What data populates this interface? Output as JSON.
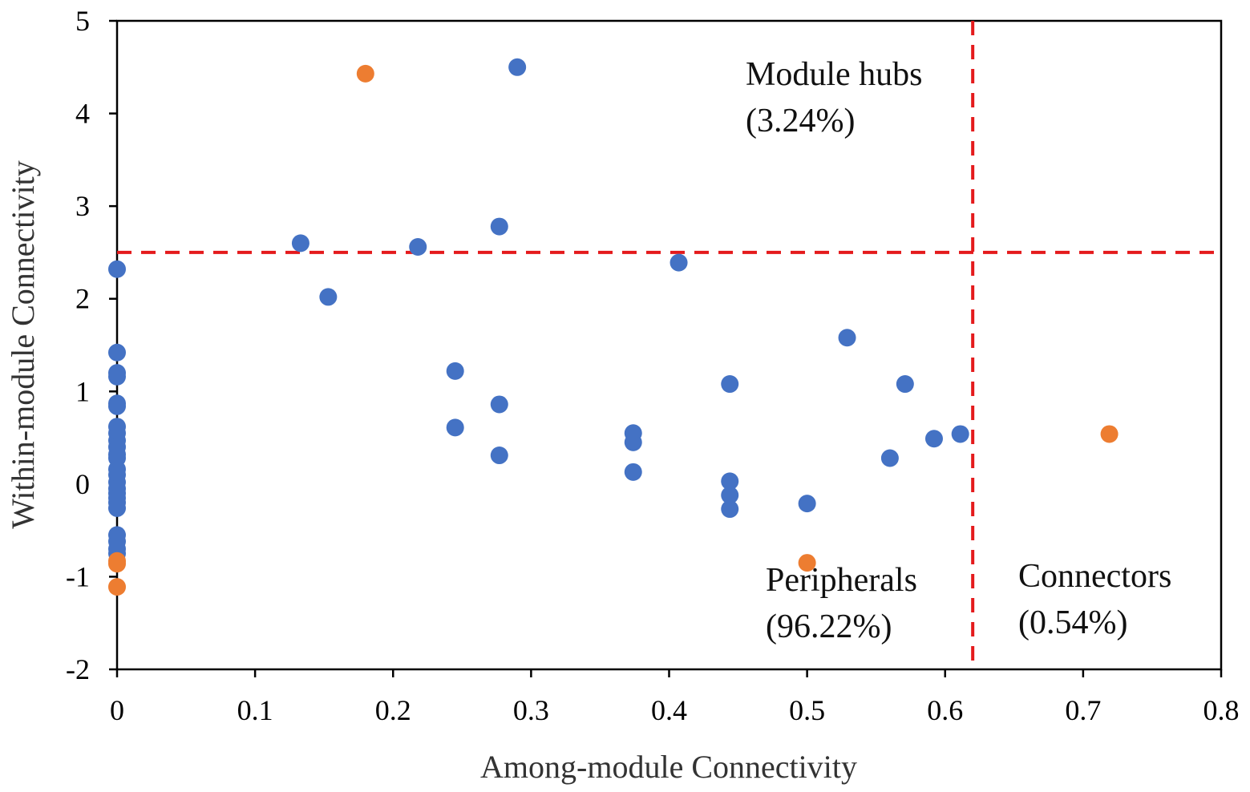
{
  "chart_data": {
    "type": "scatter",
    "xlabel": "Among-module Connectivity",
    "ylabel": "Within-module Connectivity",
    "xlim": [
      0,
      0.8
    ],
    "ylim": [
      -2,
      5
    ],
    "x_ticks": [
      "0",
      "0.1",
      "0.2",
      "0.3",
      "0.4",
      "0.5",
      "0.6",
      "0.7",
      "0.8"
    ],
    "y_ticks": [
      "5",
      "4",
      "3",
      "2",
      "1",
      "0",
      "-1",
      "-2"
    ],
    "thresholds": {
      "x": 0.62,
      "y": 2.5,
      "color": "#e41a1c"
    },
    "annotations": [
      {
        "id": "module-hubs",
        "lines": [
          "Module hubs",
          "(3.24%)"
        ]
      },
      {
        "id": "peripherals",
        "lines": [
          "Peripherals",
          "(96.22%)"
        ]
      },
      {
        "id": "connectors",
        "lines": [
          "Connectors",
          "(0.54%)"
        ]
      }
    ],
    "series": [
      {
        "name": "blue",
        "color": "#4472c4",
        "points": [
          [
            0,
            2.32
          ],
          [
            0,
            1.42
          ],
          [
            0,
            1.2
          ],
          [
            0,
            1.16
          ],
          [
            0,
            0.87
          ],
          [
            0,
            0.84
          ],
          [
            0,
            0.62
          ],
          [
            0,
            0.55
          ],
          [
            0,
            0.47
          ],
          [
            0,
            0.4
          ],
          [
            0,
            0.32
          ],
          [
            0,
            0.28
          ],
          [
            0,
            0.16
          ],
          [
            0,
            0.1
          ],
          [
            0,
            0.02
          ],
          [
            0,
            -0.05
          ],
          [
            0,
            -0.1
          ],
          [
            0,
            -0.15
          ],
          [
            0,
            -0.2
          ],
          [
            0,
            -0.26
          ],
          [
            0,
            -0.55
          ],
          [
            0,
            -0.62
          ],
          [
            0,
            -0.7
          ],
          [
            0,
            -0.75
          ],
          [
            0.133,
            2.6
          ],
          [
            0.153,
            2.02
          ],
          [
            0.218,
            2.56
          ],
          [
            0.245,
            1.22
          ],
          [
            0.245,
            0.61
          ],
          [
            0.277,
            2.78
          ],
          [
            0.277,
            0.86
          ],
          [
            0.277,
            0.31
          ],
          [
            0.29,
            4.5
          ],
          [
            0.374,
            0.55
          ],
          [
            0.374,
            0.45
          ],
          [
            0.374,
            0.13
          ],
          [
            0.407,
            2.39
          ],
          [
            0.444,
            1.08
          ],
          [
            0.444,
            0.03
          ],
          [
            0.444,
            -0.12
          ],
          [
            0.444,
            -0.27
          ],
          [
            0.5,
            -0.21
          ],
          [
            0.529,
            1.58
          ],
          [
            0.56,
            0.28
          ],
          [
            0.571,
            1.08
          ],
          [
            0.592,
            0.49
          ],
          [
            0.611,
            0.54
          ]
        ]
      },
      {
        "name": "orange",
        "color": "#ed7d31",
        "points": [
          [
            0.18,
            4.43
          ],
          [
            0,
            -0.83
          ],
          [
            0,
            -0.86
          ],
          [
            0,
            -1.11
          ],
          [
            0.5,
            -0.85
          ],
          [
            0.719,
            0.54
          ]
        ]
      }
    ]
  }
}
